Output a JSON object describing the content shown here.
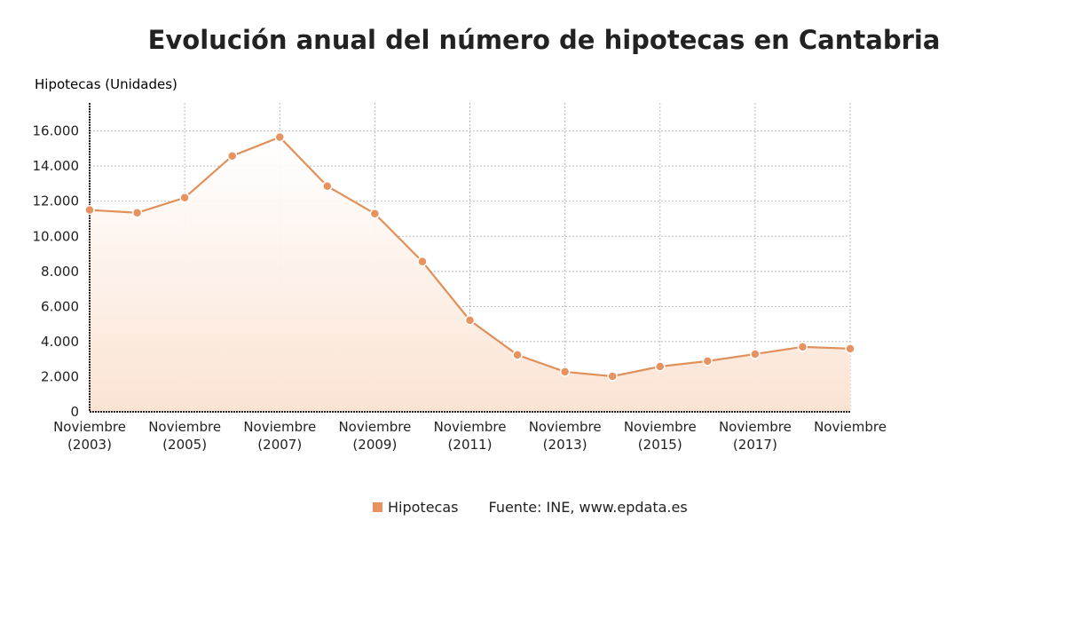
{
  "chart_data": {
    "type": "area",
    "title": "Evolución anual del número de hipotecas en Cantabria",
    "ylabel": "Hipotecas (Unidades)",
    "xlabel": "",
    "x": [
      2003,
      2004,
      2005,
      2006,
      2007,
      2008,
      2009,
      2010,
      2011,
      2012,
      2013,
      2014,
      2015,
      2016,
      2017,
      2018,
      2019
    ],
    "series": [
      {
        "name": "Hipotecas",
        "values": [
          11500,
          11340,
          12200,
          14580,
          15650,
          12860,
          11290,
          8560,
          5215,
          3240,
          2280,
          2025,
          2580,
          2890,
          3290,
          3700,
          3600
        ]
      }
    ],
    "ylim": [
      0,
      17600
    ],
    "yticks": [
      0,
      2000,
      4000,
      6000,
      8000,
      10000,
      12000,
      14000,
      16000
    ],
    "ytick_labels": [
      "0",
      "2.000",
      "4.000",
      "6.000",
      "8.000",
      "10.000",
      "12.000",
      "14.000",
      "16.000"
    ],
    "xtick_positions": [
      2003,
      2005,
      2007,
      2009,
      2011,
      2013,
      2015,
      2017,
      2019
    ],
    "xtick_labels": [
      [
        "Noviembre",
        "(2003)"
      ],
      [
        "Noviembre",
        "(2005)"
      ],
      [
        "Noviembre",
        "(2007)"
      ],
      [
        "Noviembre",
        "(2009)"
      ],
      [
        "Noviembre",
        "(2011)"
      ],
      [
        "Noviembre",
        "(2013)"
      ],
      [
        "Noviembre",
        "(2015)"
      ],
      [
        "Noviembre",
        "(2017)"
      ],
      [
        "Noviembre",
        ""
      ]
    ],
    "grid": true,
    "legend_placement": "bottom",
    "source": "Fuente: INE, www.epdata.es",
    "colors": {
      "line": "#e0905a",
      "marker": "#e8935f",
      "fill": "#fbe3d3"
    }
  }
}
